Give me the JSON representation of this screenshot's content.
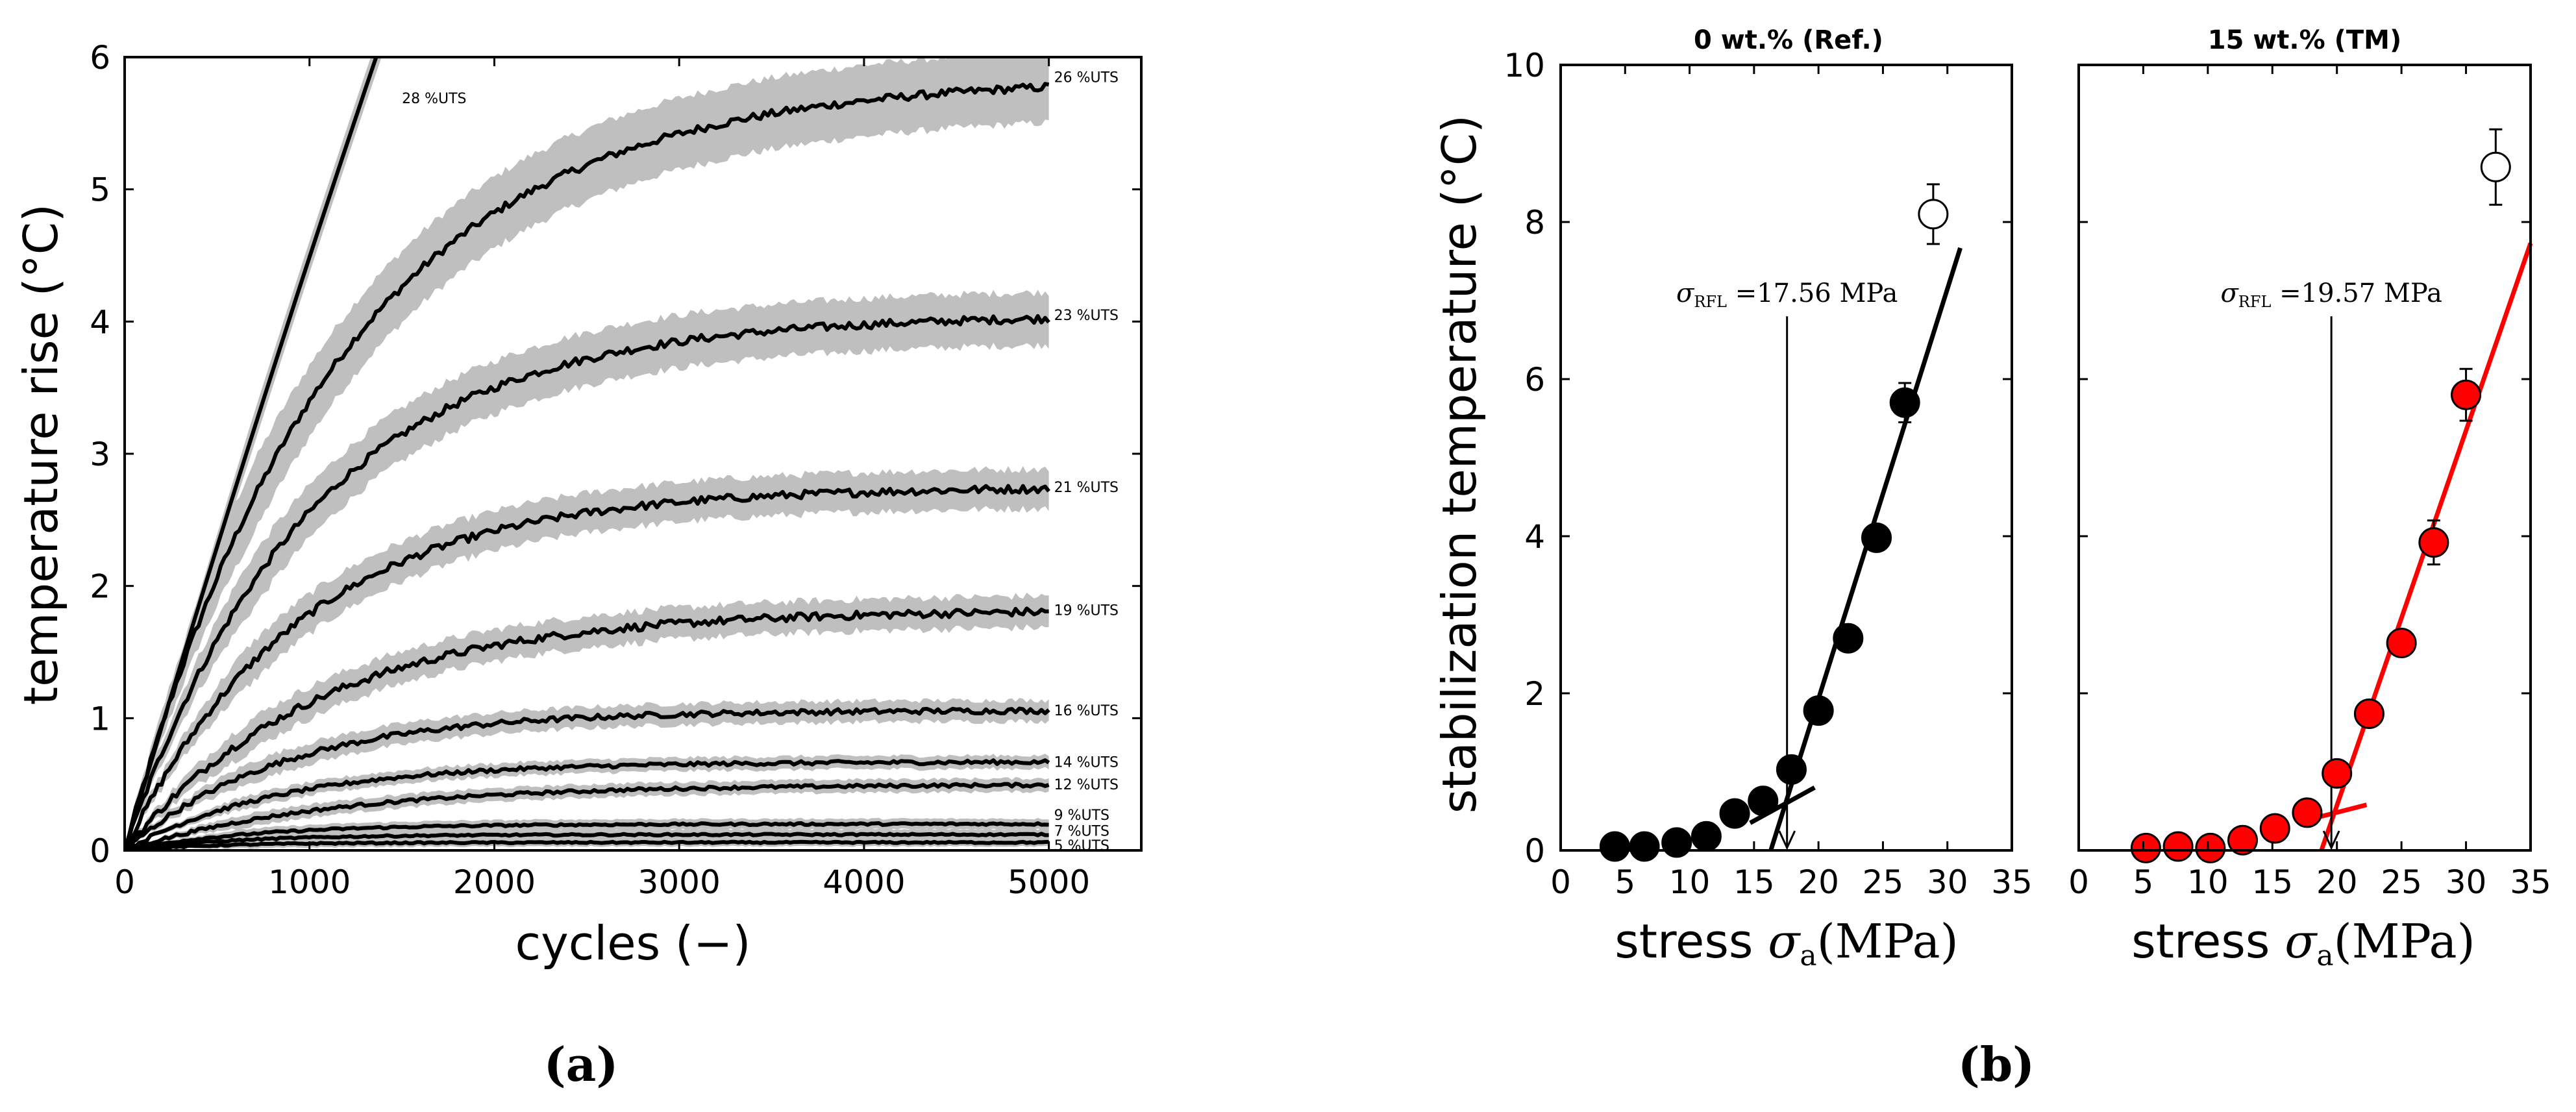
{
  "chart_data": [
    {
      "id": "a",
      "type": "line",
      "panel_label": "(a)",
      "title": "",
      "xlabel": "cycles (−)",
      "ylabel": "temperature rise (°C)",
      "xlim": [
        0,
        5500
      ],
      "ylim": [
        0,
        6
      ],
      "xticks": [
        "0",
        "1000",
        "2000",
        "3000",
        "4000",
        "5000"
      ],
      "yticks": [
        "0",
        "1",
        "2",
        "3",
        "4",
        "5",
        "6"
      ],
      "band_color": "#bfbfbf",
      "line_color": "#000000",
      "series": [
        {
          "name": "28 %UTS",
          "plateau": null,
          "initial_slope": 0.0047,
          "band": 0.12
        },
        {
          "name": "26 %UTS",
          "plateau": 5.85,
          "tau": 1150,
          "band": 0.27
        },
        {
          "name": "23 %UTS",
          "plateau": 4.05,
          "tau": 1000,
          "band": 0.2
        },
        {
          "name": "21 %UTS",
          "plateau": 2.75,
          "tau": 950,
          "band": 0.15
        },
        {
          "name": "19 %UTS",
          "plateau": 1.82,
          "tau": 1050,
          "band": 0.12
        },
        {
          "name": "16 %UTS",
          "plateau": 1.06,
          "tau": 850,
          "band": 0.08
        },
        {
          "name": "14 %UTS",
          "plateau": 0.67,
          "tau": 850,
          "band": 0.05
        },
        {
          "name": "12 %UTS",
          "plateau": 0.5,
          "tau": 1100,
          "band": 0.05
        },
        {
          "name": "9 %UTS",
          "plateau": 0.2,
          "tau": 700,
          "band": 0.04
        },
        {
          "name": "7 %UTS",
          "plateau": 0.12,
          "tau": 600,
          "band": 0.04
        },
        {
          "name": "5 %UTS",
          "plateau": 0.06,
          "tau": 500,
          "band": 0.03
        }
      ]
    },
    {
      "id": "b-left",
      "type": "scatter",
      "panel_label": "(b)",
      "title": "0 wt.% (Ref.)",
      "xlabel": "stress σa(MPa)",
      "ylabel": "stabilization temperature (°C)",
      "xlim": [
        0,
        35
      ],
      "ylim": [
        0,
        10
      ],
      "xticks": [
        "0",
        "5",
        "10",
        "15",
        "20",
        "25",
        "30",
        "35"
      ],
      "yticks": [
        "0",
        "2",
        "4",
        "6",
        "8",
        "10"
      ],
      "marker_color": "#000000",
      "fit_color": "#000000",
      "points": [
        {
          "x": 4.2,
          "y": 0.05
        },
        {
          "x": 6.5,
          "y": 0.05
        },
        {
          "x": 9.0,
          "y": 0.1
        },
        {
          "x": 11.3,
          "y": 0.18
        },
        {
          "x": 13.5,
          "y": 0.47
        },
        {
          "x": 15.7,
          "y": 0.63
        },
        {
          "x": 17.9,
          "y": 1.03
        },
        {
          "x": 20.0,
          "y": 1.78
        },
        {
          "x": 22.3,
          "y": 2.7
        },
        {
          "x": 24.5,
          "y": 3.98
        },
        {
          "x": 26.7,
          "y": 5.7,
          "err": 0.25
        }
      ],
      "outlier": {
        "x": 28.9,
        "y": 8.1,
        "err": 0.38
      },
      "low_fit": {
        "x": [
          14.7,
          19.7
        ],
        "y": [
          0.35,
          0.8
        ]
      },
      "high_fit": {
        "x": [
          16.3,
          31.0
        ],
        "y": [
          0.0,
          7.67
        ]
      },
      "annotation": {
        "label": "σRFL =17.56 MPa",
        "x": 17.56,
        "y_from": 6.8,
        "y_to": 0.0
      }
    },
    {
      "id": "b-right",
      "type": "scatter",
      "title": "15 wt.% (TM)",
      "xlabel": "stress σa(MPa)",
      "ylabel": "",
      "xlim": [
        0,
        35
      ],
      "ylim": [
        0,
        10
      ],
      "xticks": [
        "0",
        "5",
        "10",
        "15",
        "20",
        "25",
        "30",
        "35"
      ],
      "yticks": [
        "0",
        "2",
        "4",
        "6",
        "8",
        "10"
      ],
      "marker_color": "#ff0000",
      "fit_color": "#ff0000",
      "points": [
        {
          "x": 5.2,
          "y": 0.03
        },
        {
          "x": 7.7,
          "y": 0.05
        },
        {
          "x": 10.2,
          "y": 0.03
        },
        {
          "x": 12.7,
          "y": 0.13
        },
        {
          "x": 15.2,
          "y": 0.28
        },
        {
          "x": 17.7,
          "y": 0.48
        },
        {
          "x": 20.0,
          "y": 0.98
        },
        {
          "x": 22.5,
          "y": 1.74
        },
        {
          "x": 25.0,
          "y": 2.64
        },
        {
          "x": 27.5,
          "y": 3.92,
          "err": 0.28
        },
        {
          "x": 30.0,
          "y": 5.8,
          "err": 0.33
        }
      ],
      "outlier": {
        "x": 32.3,
        "y": 8.7,
        "err": 0.48
      },
      "low_fit": {
        "x": [
          18.0,
          22.3
        ],
        "y": [
          0.4,
          0.58
        ]
      },
      "high_fit": {
        "x": [
          18.8,
          35.0
        ],
        "y": [
          0.0,
          7.73
        ]
      },
      "annotation": {
        "label": "σRFL =19.57 MPa",
        "x": 19.57,
        "y_from": 6.8,
        "y_to": 0.0
      }
    }
  ],
  "labels": {
    "b_sigma": "σ",
    "b_sigma_sub": "a",
    "b_xlabel_prefix": "stress ",
    "b_unit": "(MPa)",
    "rfl_sub": "RFL"
  }
}
